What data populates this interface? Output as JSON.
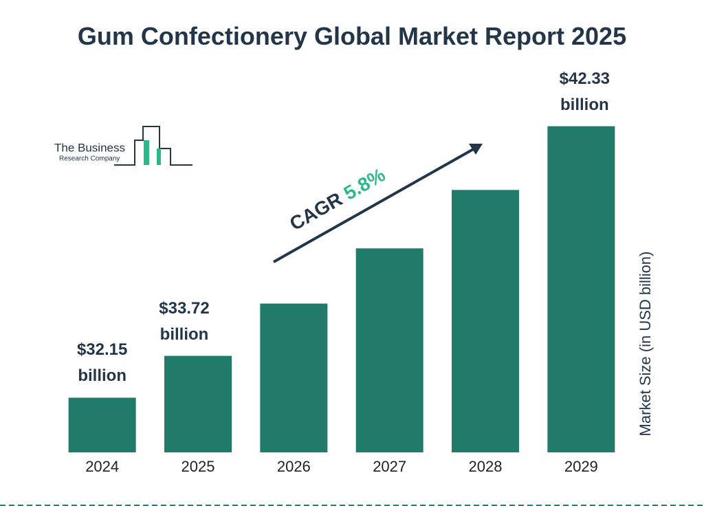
{
  "chart_data": {
    "type": "bar",
    "title": "Gum Confectionery Global Market Report 2025",
    "y_label": "Market Size (in USD billion)",
    "categories": [
      "2024",
      "2025",
      "2026",
      "2027",
      "2028",
      "2029"
    ],
    "values": [
      32.15,
      33.72,
      35.68,
      37.75,
      39.94,
      42.33
    ],
    "value_labels": [
      "$32.15 billion",
      "$33.72 billion",
      null,
      null,
      null,
      "$42.33 billion"
    ],
    "color": "#217a6a",
    "ylim": [
      30.1,
      42.5
    ],
    "cagr_label": "CAGR",
    "cagr_value": "5.8%"
  },
  "logo": {
    "line1": "The Business",
    "line2": "Research Company"
  }
}
